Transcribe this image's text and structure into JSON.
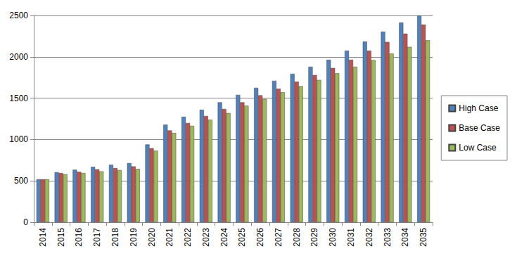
{
  "chart_data": {
    "type": "bar",
    "categories": [
      "2014",
      "2015",
      "2016",
      "2017",
      "2018",
      "2019",
      "2020",
      "2021",
      "2022",
      "2023",
      "2024",
      "2025",
      "2026",
      "2027",
      "2028",
      "2029",
      "2030",
      "2031",
      "2032",
      "2033",
      "2034",
      "2035"
    ],
    "series": [
      {
        "name": "High Case",
        "color": "#4f81bd",
        "values": [
          520,
          605,
          635,
          670,
          695,
          715,
          940,
          1180,
          1275,
          1360,
          1450,
          1540,
          1625,
          1710,
          1795,
          1880,
          1965,
          2075,
          2185,
          2305,
          2415,
          2500
        ]
      },
      {
        "name": "Base Case",
        "color": "#c0504d",
        "values": [
          520,
          595,
          610,
          640,
          655,
          675,
          895,
          1110,
          1200,
          1285,
          1370,
          1450,
          1535,
          1615,
          1700,
          1780,
          1865,
          1965,
          2075,
          2180,
          2280,
          2390
        ]
      },
      {
        "name": "Low Case",
        "color": "#9bbb59",
        "values": [
          520,
          580,
          595,
          615,
          630,
          645,
          865,
          1080,
          1165,
          1240,
          1320,
          1410,
          1490,
          1570,
          1645,
          1720,
          1800,
          1880,
          1960,
          2040,
          2120,
          2200
        ]
      }
    ],
    "ylim": [
      0,
      2500
    ],
    "yticks": [
      0,
      500,
      1000,
      1500,
      2000,
      2500
    ],
    "grid": true,
    "legend": "right"
  }
}
